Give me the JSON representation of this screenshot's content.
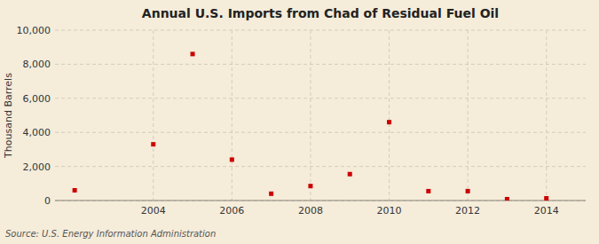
{
  "chart_data": {
    "type": "scatter",
    "title": "Annual U.S. Imports from Chad of Residual Fuel Oil",
    "y_label": "Thousand Barrels",
    "source": "Source: U.S. Energy Information Administration",
    "x": [
      2002,
      2004,
      2005,
      2006,
      2007,
      2008,
      2009,
      2010,
      2011,
      2012,
      2013,
      2014
    ],
    "values": [
      600,
      3300,
      8600,
      2400,
      400,
      850,
      1550,
      4600,
      550,
      550,
      80,
      130
    ],
    "color": "#cc0000",
    "marker": "square",
    "xlim": [
      2001.5,
      2015.0
    ],
    "ylim": [
      0,
      10000
    ],
    "xticks": [
      2004,
      2006,
      2008,
      2010,
      2012,
      2014
    ],
    "yticks": [
      0,
      {
        "value": 2000,
        "label": "2,000"
      },
      {
        "value": 4000,
        "label": "4,000"
      },
      {
        "value": 6000,
        "label": "6,000"
      },
      {
        "value": 8000,
        "label": "8,000"
      },
      {
        "value": 10000,
        "label": "10,000"
      }
    ],
    "grid": true
  }
}
